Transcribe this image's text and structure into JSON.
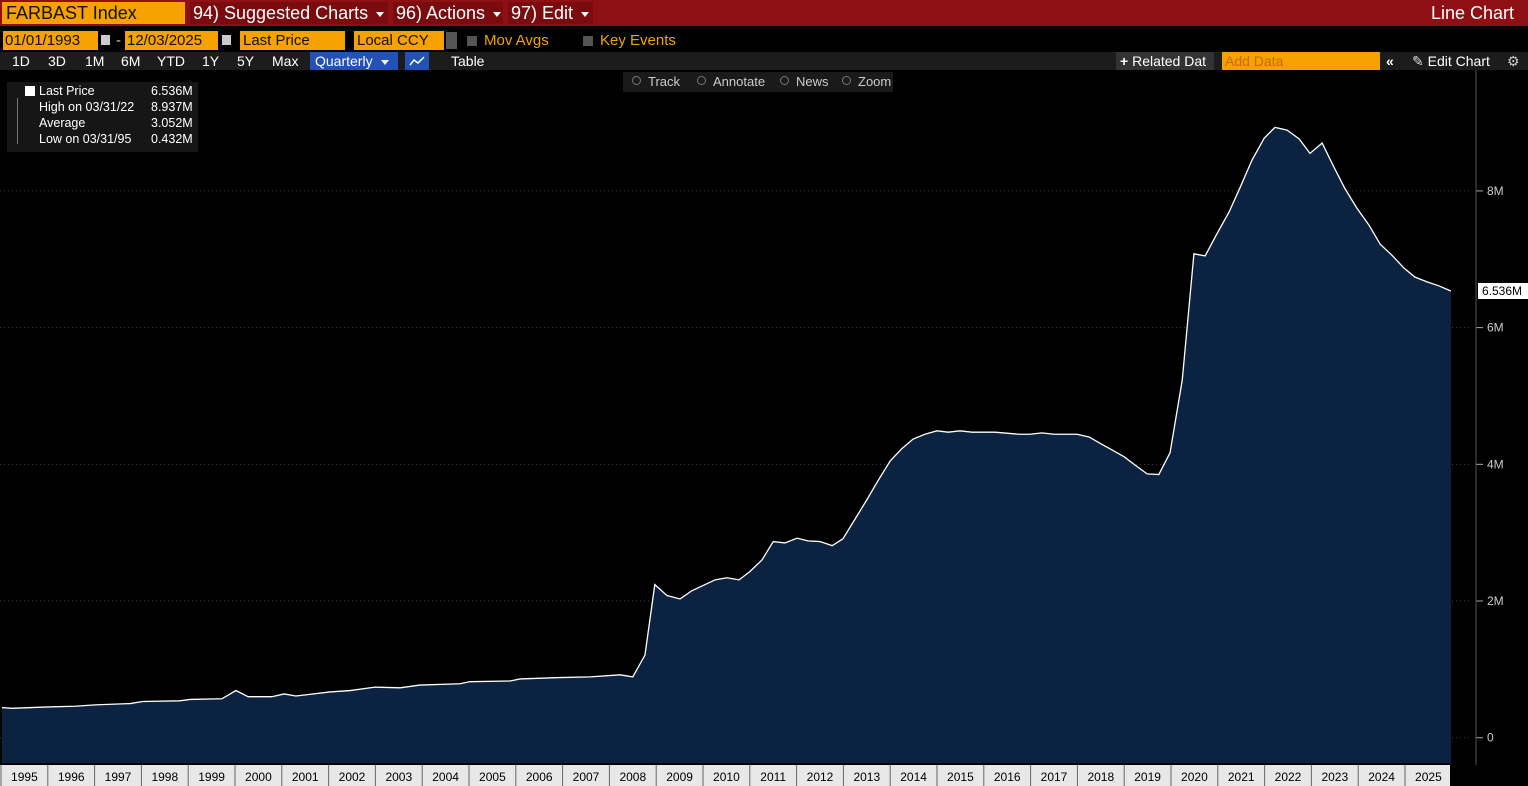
{
  "header": {
    "ticker": "FARBAST Index",
    "menus": [
      "94) Suggested Charts",
      "96) Actions",
      "97) Edit"
    ],
    "view": "Line Chart"
  },
  "controls": {
    "start_date": "01/01/1993",
    "end_date": "12/03/2025",
    "field": "Last Price",
    "currency": "Local CCY",
    "options": [
      "Mov Avgs",
      "Key Events"
    ],
    "periods": [
      "1D",
      "3D",
      "1M",
      "6M",
      "YTD",
      "1Y",
      "5Y",
      "Max"
    ],
    "frequency": "Quarterly",
    "table": "Table",
    "related": "Related Dat",
    "add_data": "Add Data",
    "edit": "Edit Chart"
  },
  "tools": [
    "Track",
    "Annotate",
    "News",
    "Zoom"
  ],
  "legend": [
    {
      "value": "6.536M"
    },
    {
      "label": "High on 03/31/22",
      "value": "8.937M"
    },
    {
      "label": "Average",
      "value": "3.052M"
    },
    {
      "label": "Low on 03/31/95",
      "value": "0.432M"
    }
  ],
  "chart_data": {
    "type": "area",
    "series": [
      {
        "name": "Last Price",
        "color": "#ffffff",
        "fill": "#0b2341",
        "x": [
          1995.02,
          1995.24,
          1996.0,
          1996.58,
          1997.01,
          1997.76,
          1998.03,
          1998.82,
          1999.04,
          1999.72,
          2000.02,
          2000.28,
          2000.79,
          2001.05,
          2001.3,
          2002.03,
          2002.46,
          2002.99,
          2003.53,
          2003.95,
          2004.81,
          2005.02,
          2005.88,
          2006.09,
          2006.94,
          2007.59,
          2008.23,
          2008.5,
          2008.76,
          2008.97,
          2009.23,
          2009.51,
          2009.76,
          2010.26,
          2010.51,
          2010.77,
          2011.0,
          2011.26,
          2011.5,
          2011.75,
          2012.01,
          2012.24,
          2012.5,
          2012.76,
          2012.99,
          2013.25,
          2013.5,
          2013.74,
          2014.0,
          2014.25,
          2014.49,
          2014.74,
          2015.0,
          2015.24,
          2015.49,
          2015.75,
          2016.24,
          2016.75,
          2016.99,
          2017.24,
          2017.5,
          2017.99,
          2018.25,
          2018.48,
          2018.74,
          2019.0,
          2019.23,
          2019.49,
          2019.74,
          2019.98,
          2020.24,
          2020.49,
          2020.73,
          2020.98,
          2021.24,
          2021.47,
          2021.73,
          2021.99,
          2022.22,
          2022.48,
          2022.74,
          2022.97,
          2023.23,
          2023.48,
          2023.72,
          2023.97,
          2024.23,
          2024.47,
          2024.72,
          2024.98,
          2025.21,
          2025.47,
          2025.73,
          2025.98
        ],
        "values": [
          0.44,
          0.43,
          0.45,
          0.46,
          0.48,
          0.5,
          0.53,
          0.54,
          0.56,
          0.57,
          0.69,
          0.6,
          0.6,
          0.64,
          0.61,
          0.67,
          0.69,
          0.74,
          0.73,
          0.77,
          0.79,
          0.82,
          0.83,
          0.86,
          0.88,
          0.89,
          0.92,
          0.89,
          1.21,
          2.24,
          2.08,
          2.03,
          2.15,
          2.31,
          2.34,
          2.31,
          2.43,
          2.6,
          2.87,
          2.85,
          2.92,
          2.88,
          2.87,
          2.81,
          2.91,
          3.2,
          3.48,
          3.76,
          4.05,
          4.23,
          4.37,
          4.44,
          4.49,
          4.47,
          4.49,
          4.47,
          4.47,
          4.44,
          4.44,
          4.46,
          4.44,
          4.44,
          4.4,
          4.31,
          4.21,
          4.11,
          3.99,
          3.86,
          3.85,
          4.17,
          5.23,
          7.08,
          7.05,
          7.37,
          7.69,
          8.04,
          8.45,
          8.77,
          8.93,
          8.89,
          8.76,
          8.55,
          8.7,
          8.35,
          8.03,
          7.75,
          7.5,
          7.22,
          7.06,
          6.87,
          6.74,
          6.67,
          6.61,
          6.536
        ]
      }
    ],
    "xlim": [
      1995,
      2026
    ],
    "xticks": [
      1995,
      1996,
      1997,
      1998,
      1999,
      2000,
      2001,
      2002,
      2003,
      2004,
      2005,
      2006,
      2007,
      2008,
      2009,
      2010,
      2011,
      2012,
      2013,
      2014,
      2015,
      2016,
      2017,
      2018,
      2019,
      2020,
      2021,
      2022,
      2023,
      2024,
      2025
    ],
    "ylim": [
      -0.37,
      9.74
    ],
    "yticks": [
      0,
      {
        "value": 2,
        "label": "2M"
      },
      {
        "value": 4,
        "label": "4M"
      },
      {
        "value": 6,
        "label": "6M"
      },
      {
        "value": 8,
        "label": "8M"
      }
    ],
    "grid": true
  }
}
